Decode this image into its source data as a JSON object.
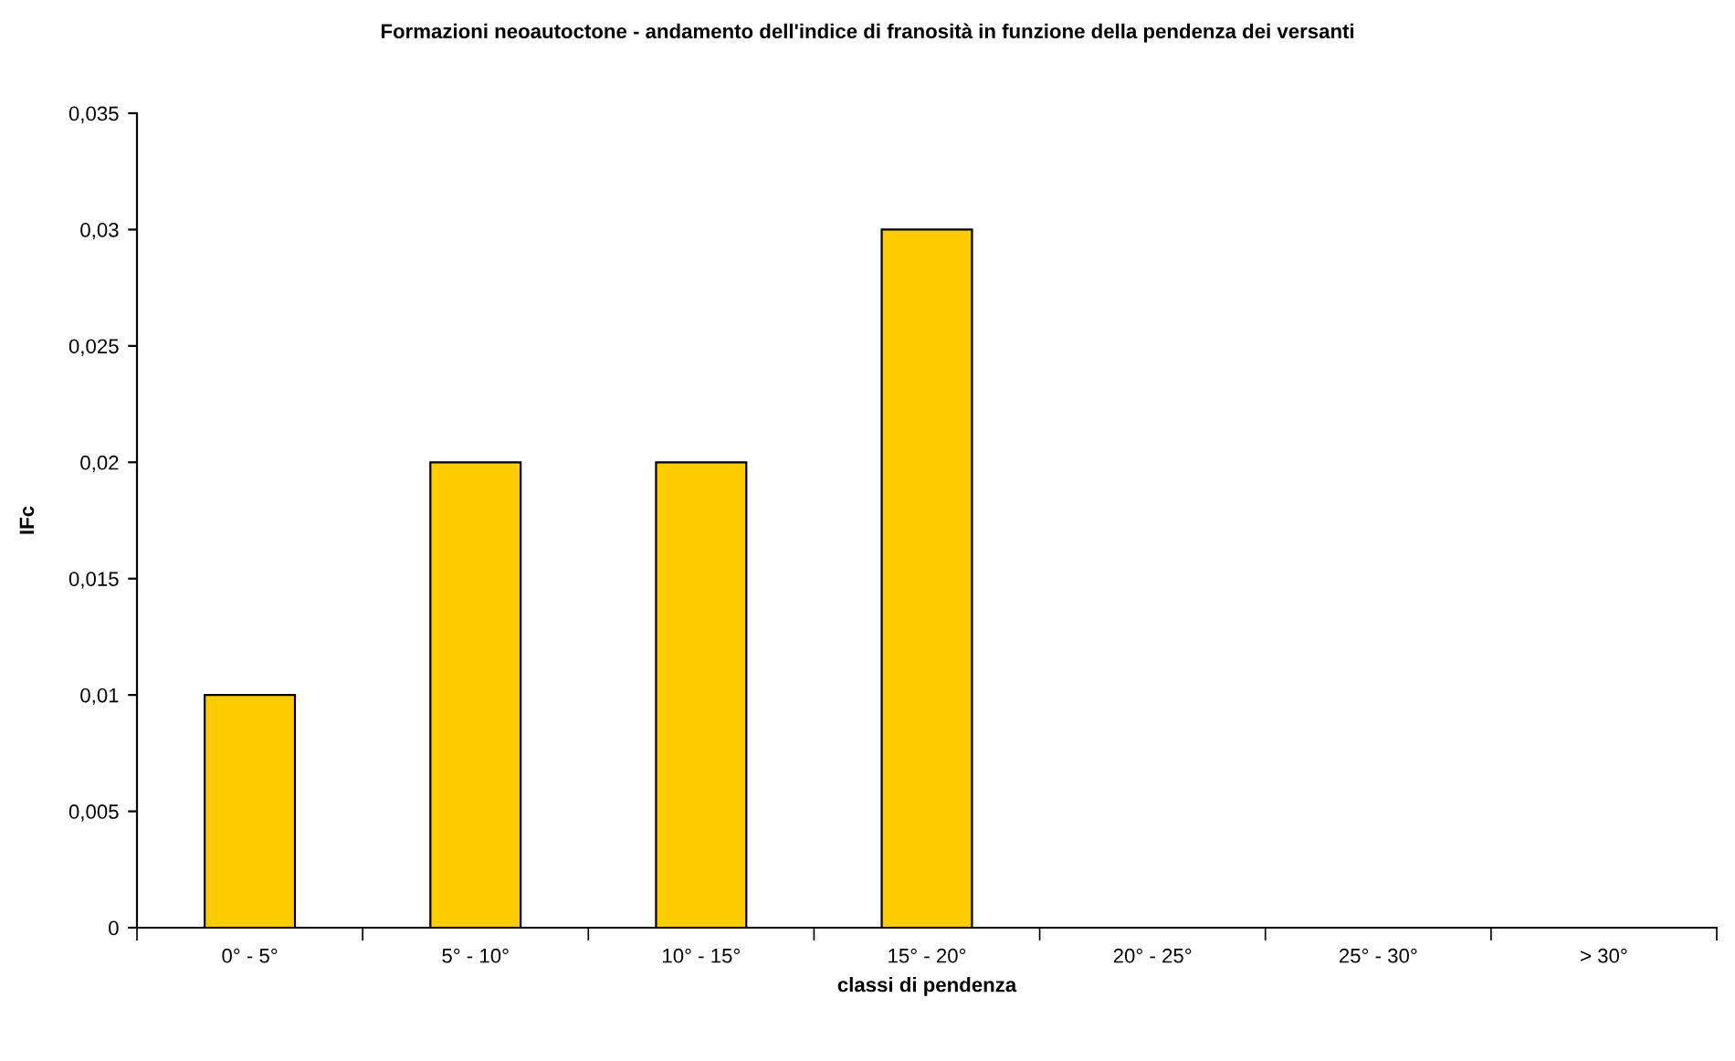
{
  "chart_data": {
    "type": "bar",
    "title": "Formazioni neoautoctone - andamento dell'indice di franosità in funzione della pendenza dei versanti",
    "xlabel": "classi di pendenza",
    "ylabel": "IFc",
    "categories": [
      "0° - 5°",
      "5° - 10°",
      "10° - 15°",
      "15° - 20°",
      "20° - 25°",
      "25° - 30°",
      "> 30°"
    ],
    "values": [
      0.01,
      0.02,
      0.02,
      0.03,
      0,
      0,
      0
    ],
    "color": "#ffcc00",
    "ylim": [
      0,
      0.035
    ],
    "yticks": [
      {
        "value": 0,
        "label": "0"
      },
      {
        "value": 0.005,
        "label": "0,005"
      },
      {
        "value": 0.01,
        "label": "0,01"
      },
      {
        "value": 0.015,
        "label": "0,015"
      },
      {
        "value": 0.02,
        "label": "0,02"
      },
      {
        "value": 0.025,
        "label": "0,025"
      },
      {
        "value": 0.03,
        "label": "0,03"
      },
      {
        "value": 0.035,
        "label": "0,035"
      }
    ],
    "grid": false,
    "legend": false
  }
}
